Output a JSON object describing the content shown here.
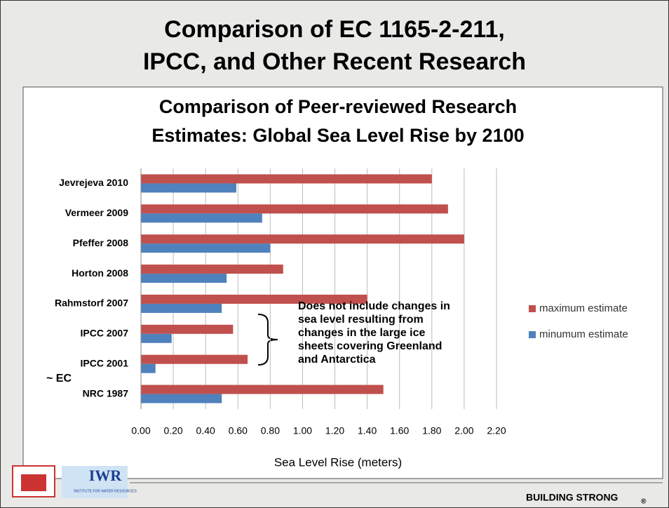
{
  "slide": {
    "title_lines": [
      "Comparison of EC 1165-2-211,",
      "IPCC, and Other Recent Research"
    ],
    "footer": "BUILDING STRONG",
    "footer_mark": "®",
    "logo_text": "IWR",
    "logo_subtext": "INSTITUTE FOR WATER RESOURCES"
  },
  "chart_data": {
    "type": "hbar",
    "title_lines": [
      "Comparison of Peer-reviewed Research",
      "Estimates: Global Sea Level Rise by 2100"
    ],
    "x_label": "Sea Level Rise (meters)",
    "categories": [
      "Jevrejeva 2010",
      "Vermeer 2009",
      "Pfeffer 2008",
      "Horton 2008",
      "Rahmstorf 2007",
      "IPCC 2007",
      "IPCC 2001",
      "NRC 1987"
    ],
    "series": [
      {
        "name": "maximum estimate",
        "color": "#c0504d",
        "values": [
          1.8,
          1.9,
          2.0,
          0.88,
          1.4,
          0.57,
          0.66,
          1.5
        ]
      },
      {
        "name": "minumum estimate",
        "color": "#4f81bd",
        "values": [
          0.59,
          0.75,
          0.8,
          0.53,
          0.5,
          0.19,
          0.09,
          0.5
        ]
      }
    ],
    "xlim": [
      0,
      2.2
    ],
    "xticks": [
      {
        "value": 0,
        "label": "0.00"
      },
      {
        "value": 0.2,
        "label": "0.20"
      },
      {
        "value": 0.4,
        "label": "0.40"
      },
      {
        "value": 0.6,
        "label": "0.60"
      },
      {
        "value": 0.8,
        "label": "0.80"
      },
      {
        "value": 1.0,
        "label": "1.00"
      },
      {
        "value": 1.2,
        "label": "1.20"
      },
      {
        "value": 1.4,
        "label": "1.40"
      },
      {
        "value": 1.6,
        "label": "1.60"
      },
      {
        "value": 1.8,
        "label": "1.80"
      },
      {
        "value": 2.0,
        "label": "2.00"
      },
      {
        "value": 2.2,
        "label": "2.20"
      }
    ],
    "grid": true,
    "legend": "right",
    "annotation_lines": [
      "Does not include changes in",
      "sea level resulting from",
      "changes in the large ice",
      "sheets covering Greenland",
      "and Antarctica"
    ],
    "side_label": "~ EC"
  }
}
